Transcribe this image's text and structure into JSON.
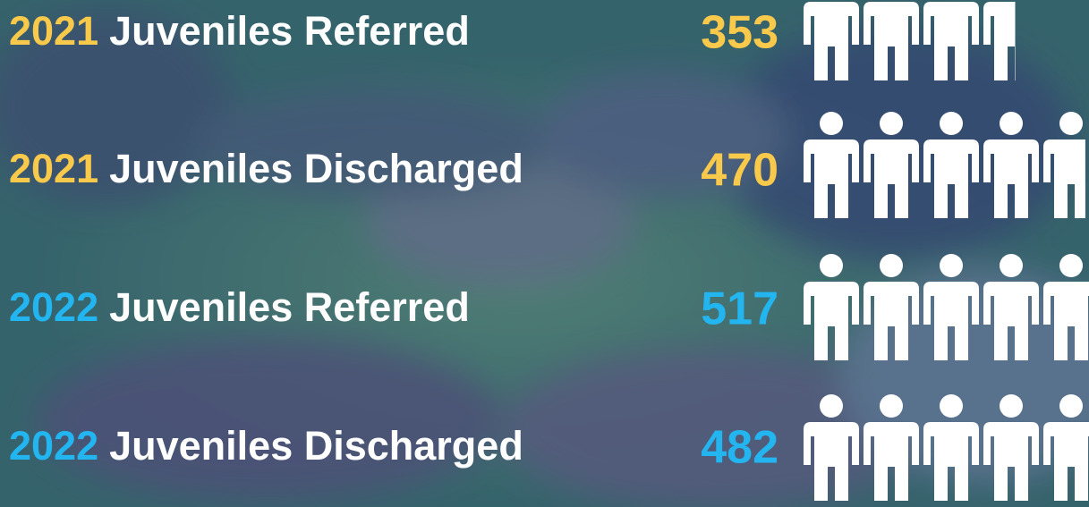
{
  "rows": [
    {
      "year": "2021",
      "label": "Juveniles Referred",
      "value": 353,
      "color": "#f8c94b"
    },
    {
      "year": "2021",
      "label": "Juveniles Discharged",
      "value": 470,
      "color": "#f8c94b"
    },
    {
      "year": "2022",
      "label": "Juveniles Referred",
      "value": 517,
      "color": "#22b5f0"
    },
    {
      "year": "2022",
      "label": "Juveniles Discharged",
      "value": 482,
      "color": "#22b5f0"
    }
  ]
}
